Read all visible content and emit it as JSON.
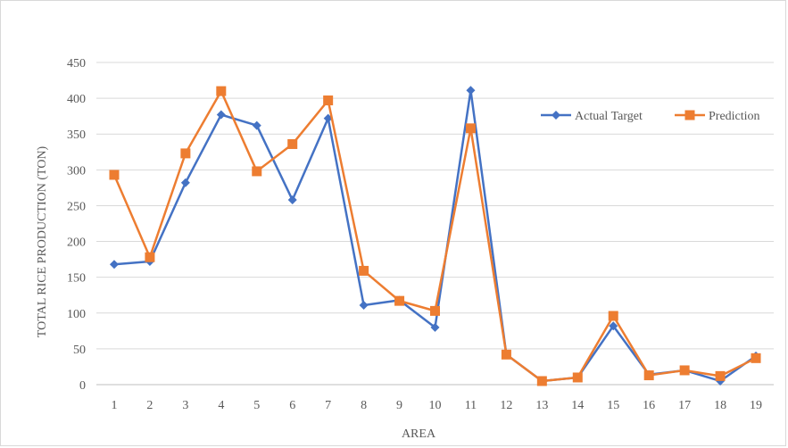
{
  "chart_data": {
    "type": "line",
    "xlabel": "AREA",
    "ylabel": "TOTAL RICE PRODUCTION (TON)",
    "categories": [
      "1",
      "2",
      "3",
      "4",
      "5",
      "6",
      "7",
      "8",
      "9",
      "10",
      "11",
      "12",
      "13",
      "14",
      "15",
      "16",
      "17",
      "18",
      "19"
    ],
    "ylim": [
      0,
      450
    ],
    "yticks": [
      0,
      50,
      100,
      150,
      200,
      250,
      300,
      350,
      400,
      450
    ],
    "grid": true,
    "legend_position": "right",
    "series": [
      {
        "name": "Actual Target",
        "color": "#4472c4",
        "marker": "diamond",
        "values": [
          168,
          172,
          282,
          377,
          362,
          258,
          372,
          111,
          118,
          80,
          411,
          42,
          5,
          10,
          82,
          14,
          20,
          5,
          40
        ]
      },
      {
        "name": "Prediction",
        "color": "#ed7d31",
        "marker": "square",
        "values": [
          293,
          178,
          323,
          410,
          298,
          336,
          397,
          159,
          117,
          103,
          358,
          42,
          5,
          10,
          96,
          13,
          20,
          12,
          37
        ]
      }
    ]
  }
}
